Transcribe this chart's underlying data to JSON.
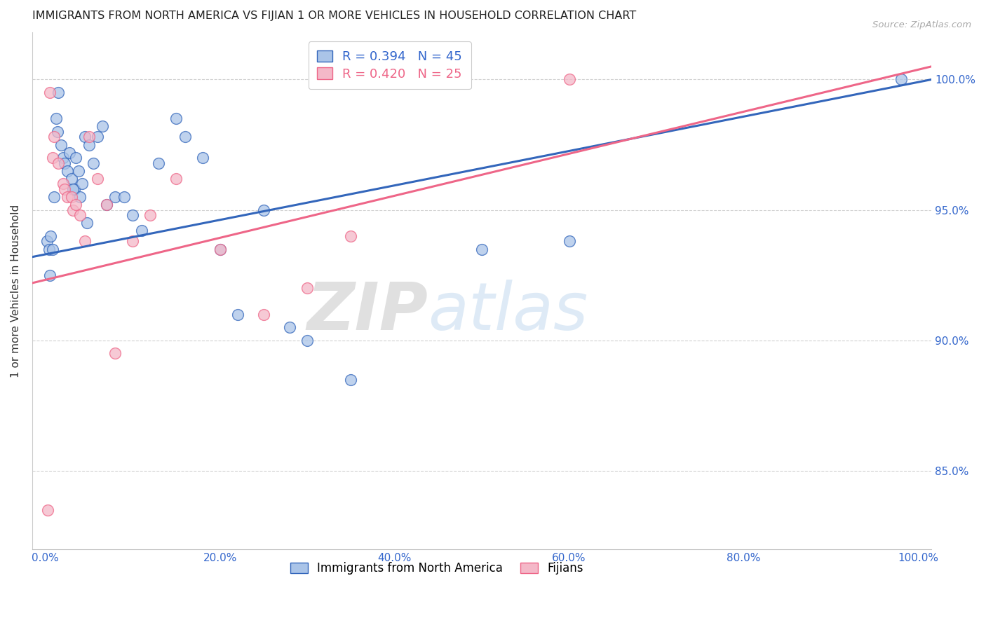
{
  "title": "IMMIGRANTS FROM NORTH AMERICA VS FIJIAN 1 OR MORE VEHICLES IN HOUSEHOLD CORRELATION CHART",
  "source": "Source: ZipAtlas.com",
  "xlabel": "",
  "ylabel": "1 or more Vehicles in Household",
  "series1_label": "Immigrants from North America",
  "series2_label": "Fijians",
  "series1_color": "#aac4e8",
  "series2_color": "#f4b8c8",
  "series1_line_color": "#3366bb",
  "series2_line_color": "#ee6688",
  "R1": 0.394,
  "N1": 45,
  "R2": 0.42,
  "N2": 25,
  "xlim": [
    -1.5,
    101.5
  ],
  "ylim": [
    82.0,
    101.8
  ],
  "yticks": [
    85.0,
    90.0,
    95.0,
    100.0
  ],
  "xticks": [
    0.0,
    20.0,
    40.0,
    60.0,
    80.0,
    100.0
  ],
  "series1_x": [
    0.2,
    0.4,
    0.5,
    0.6,
    0.8,
    1.0,
    1.2,
    1.4,
    1.5,
    1.8,
    2.0,
    2.2,
    2.5,
    2.8,
    3.0,
    3.3,
    3.5,
    3.8,
    4.0,
    4.2,
    4.5,
    5.0,
    5.5,
    6.0,
    6.5,
    7.0,
    8.0,
    9.0,
    10.0,
    11.0,
    13.0,
    15.0,
    16.0,
    18.0,
    20.0,
    22.0,
    25.0,
    28.0,
    30.0,
    35.0,
    50.0,
    60.0,
    3.2,
    4.8,
    98.0
  ],
  "series1_y": [
    93.8,
    93.5,
    92.5,
    94.0,
    93.5,
    95.5,
    98.5,
    98.0,
    99.5,
    97.5,
    97.0,
    96.8,
    96.5,
    97.2,
    96.2,
    95.8,
    97.0,
    96.5,
    95.5,
    96.0,
    97.8,
    97.5,
    96.8,
    97.8,
    98.2,
    95.2,
    95.5,
    95.5,
    94.8,
    94.2,
    96.8,
    98.5,
    97.8,
    97.0,
    93.5,
    91.0,
    95.0,
    90.5,
    90.0,
    88.5,
    93.5,
    93.8,
    95.8,
    94.5,
    100.0
  ],
  "series2_x": [
    0.3,
    0.5,
    0.8,
    1.0,
    1.5,
    2.0,
    2.2,
    2.5,
    3.0,
    3.2,
    3.5,
    4.0,
    4.5,
    5.0,
    6.0,
    7.0,
    8.0,
    10.0,
    12.0,
    15.0,
    20.0,
    25.0,
    30.0,
    35.0,
    60.0
  ],
  "series2_y": [
    83.5,
    99.5,
    97.0,
    97.8,
    96.8,
    96.0,
    95.8,
    95.5,
    95.5,
    95.0,
    95.2,
    94.8,
    93.8,
    97.8,
    96.2,
    95.2,
    89.5,
    93.8,
    94.8,
    96.2,
    93.5,
    91.0,
    92.0,
    94.0,
    100.0
  ],
  "trend1_x0": -1.5,
  "trend1_x1": 101.5,
  "trend1_y0": 93.2,
  "trend1_y1": 100.0,
  "trend2_x0": -1.5,
  "trend2_x1": 101.5,
  "trend2_y0": 92.2,
  "trend2_y1": 100.5,
  "background_color": "#ffffff",
  "grid_color": "#cccccc",
  "watermark_zip": "ZIP",
  "watermark_atlas": "atlas",
  "marker_size": 130
}
